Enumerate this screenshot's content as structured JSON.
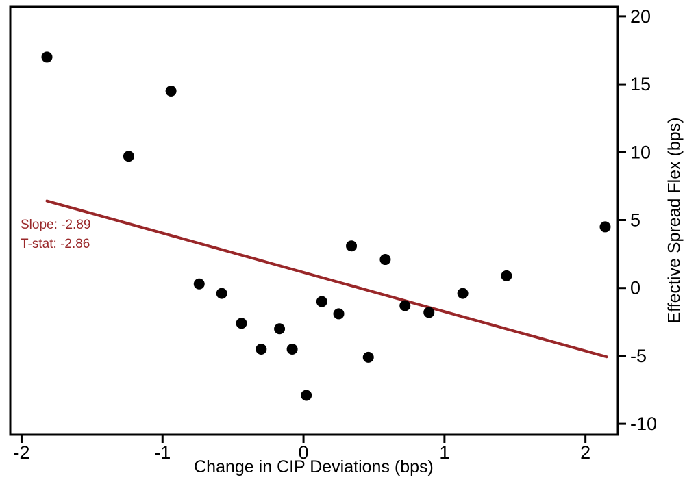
{
  "figure": {
    "background": "#ffffff",
    "axis_color": "#000000",
    "marker_color": "#000000",
    "accent_color": "#992729"
  },
  "chart_data": {
    "type": "scatter",
    "title": "",
    "xlabel": "Change in CIP Deviations (bps)",
    "ylabel": "Effective Spread Flex (bps)",
    "xlim": [
      -2.08,
      2.23
    ],
    "ylim": [
      -10.8,
      20.7
    ],
    "x_ticks": [
      -2,
      -1,
      0,
      1,
      2
    ],
    "y_ticks": [
      -10,
      -5,
      0,
      5,
      10,
      15,
      20
    ],
    "y_axis_side": "right",
    "grid": false,
    "legend": "none",
    "points": [
      [
        -1.82,
        17.0
      ],
      [
        -1.24,
        9.7
      ],
      [
        -0.94,
        14.5
      ],
      [
        -0.74,
        0.3
      ],
      [
        -0.58,
        -0.4
      ],
      [
        -0.44,
        -2.6
      ],
      [
        -0.3,
        -4.5
      ],
      [
        -0.17,
        -3.0
      ],
      [
        -0.08,
        -4.5
      ],
      [
        0.02,
        -7.9
      ],
      [
        0.13,
        -1.0
      ],
      [
        0.25,
        -1.9
      ],
      [
        0.34,
        3.1
      ],
      [
        0.46,
        -5.1
      ],
      [
        0.58,
        2.1
      ],
      [
        0.72,
        -1.3
      ],
      [
        0.89,
        -1.8
      ],
      [
        1.13,
        -0.4
      ],
      [
        1.44,
        0.9
      ],
      [
        2.14,
        4.5
      ]
    ],
    "fit_line": {
      "slope": -2.89,
      "intercept": 1.15,
      "x_start": -1.82,
      "x_end": 2.15
    },
    "annotation": {
      "lines": [
        "Slope: -2.89",
        "T-stat: -2.86"
      ]
    }
  }
}
